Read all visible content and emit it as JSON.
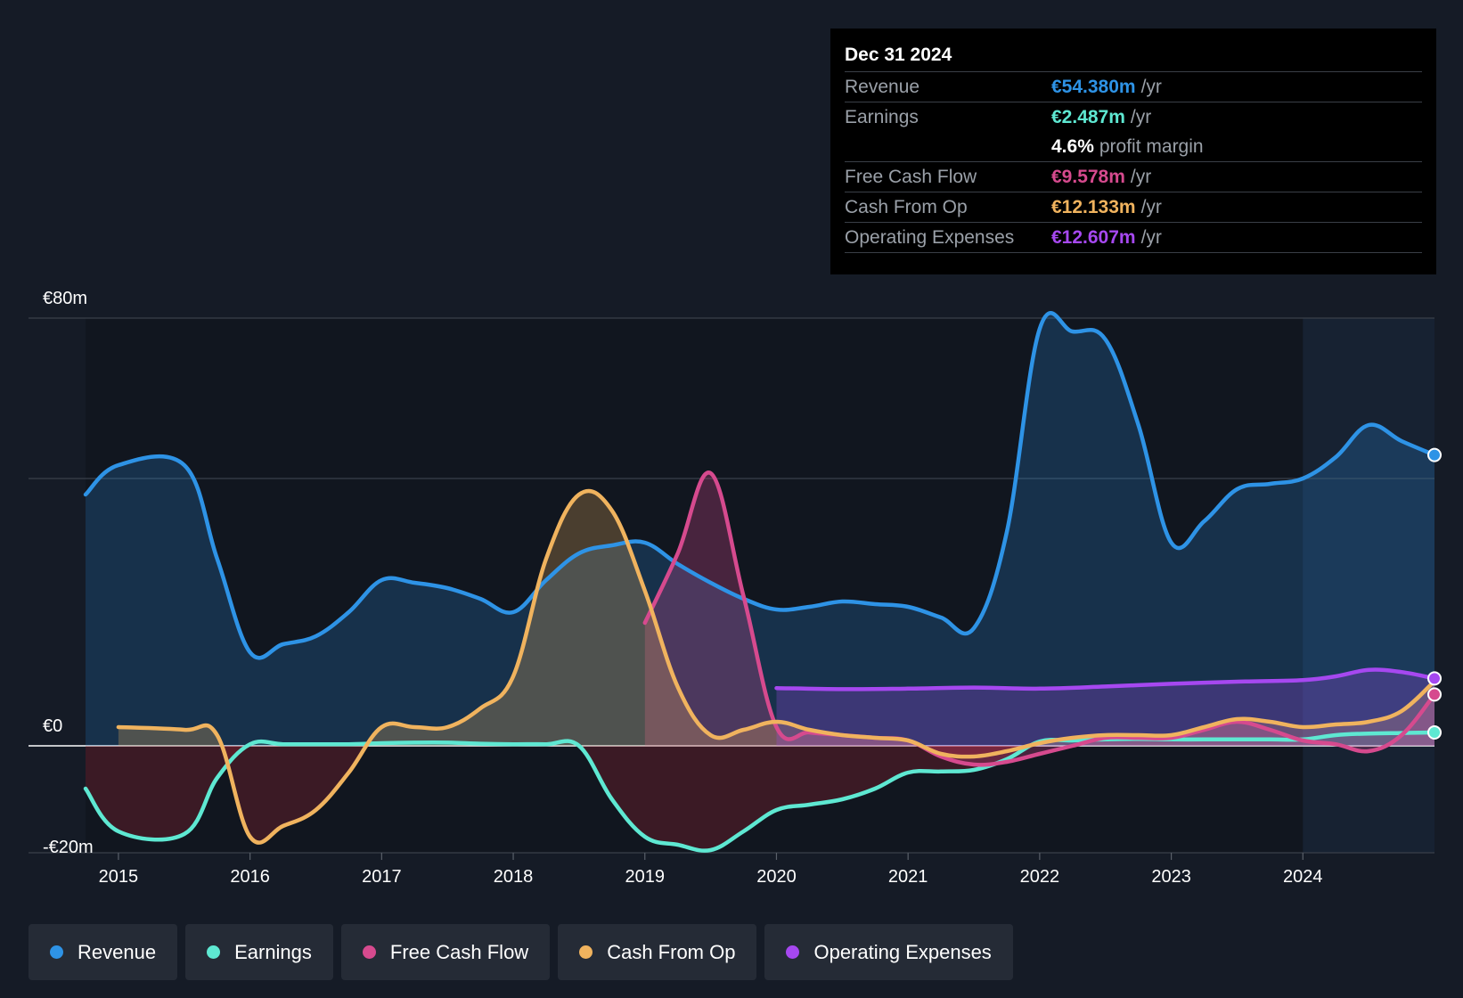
{
  "tooltip": {
    "date": "Dec 31 2024",
    "rows": [
      {
        "label": "Revenue",
        "value": "€54.380m",
        "unit": "/yr",
        "color": "#2e93e6"
      },
      {
        "label": "Earnings",
        "value": "€2.487m",
        "unit": "/yr",
        "color": "#5ee8d2"
      },
      {
        "label": "",
        "value": "4.6%",
        "unit": "profit margin",
        "color": "#ffffff"
      },
      {
        "label": "Free Cash Flow",
        "value": "€9.578m",
        "unit": "/yr",
        "color": "#d64a8e"
      },
      {
        "label": "Cash From Op",
        "value": "€12.133m",
        "unit": "/yr",
        "color": "#f0b35e"
      },
      {
        "label": "Operating Expenses",
        "value": "€12.607m",
        "unit": "/yr",
        "color": "#a648f0"
      }
    ]
  },
  "legend": [
    {
      "label": "Revenue",
      "color": "#2e93e6"
    },
    {
      "label": "Earnings",
      "color": "#5ee8d2"
    },
    {
      "label": "Free Cash Flow",
      "color": "#d64a8e"
    },
    {
      "label": "Cash From Op",
      "color": "#f0b35e"
    },
    {
      "label": "Operating Expenses",
      "color": "#a648f0"
    }
  ],
  "chart_data": {
    "type": "line",
    "title": "",
    "xlabel": "",
    "ylabel": "",
    "ylim": [
      -20,
      80
    ],
    "xlim": [
      2014.75,
      2025.0
    ],
    "y_tick_labels": [
      "€80m",
      "€0",
      "-€20m"
    ],
    "y_ticks": [
      80,
      0,
      -20
    ],
    "x_ticks": [
      2015,
      2016,
      2017,
      2018,
      2019,
      2020,
      2021,
      2022,
      2023,
      2024
    ],
    "x_tick_labels": [
      "2015",
      "2016",
      "2017",
      "2018",
      "2019",
      "2020",
      "2021",
      "2022",
      "2023",
      "2024"
    ],
    "gridlines": [
      80,
      50,
      0,
      -20
    ],
    "highlight_start": 2024.0,
    "series": [
      {
        "name": "Revenue",
        "color": "#2e93e6",
        "x": [
          2014.75,
          2015.0,
          2015.5,
          2015.75,
          2016.0,
          2016.25,
          2016.5,
          2016.75,
          2017.0,
          2017.25,
          2017.5,
          2017.75,
          2018.0,
          2018.25,
          2018.5,
          2018.75,
          2019.0,
          2019.25,
          2019.5,
          2019.75,
          2020.0,
          2020.25,
          2020.5,
          2020.75,
          2021.0,
          2021.25,
          2021.5,
          2021.75,
          2022.0,
          2022.25,
          2022.5,
          2022.75,
          2023.0,
          2023.25,
          2023.5,
          2023.75,
          2024.0,
          2024.25,
          2024.5,
          2024.75,
          2025.0
        ],
        "y": [
          47,
          52.5,
          52.5,
          35,
          17.5,
          19,
          20.5,
          25,
          31,
          30.5,
          29.5,
          27.5,
          25,
          31,
          36,
          37.5,
          38,
          34,
          30.5,
          27.5,
          25.5,
          26,
          27,
          26.5,
          26,
          24,
          22,
          40,
          78,
          77.5,
          76,
          60,
          38,
          42,
          48,
          49,
          50,
          54,
          60,
          57,
          54.4
        ]
      },
      {
        "name": "Earnings",
        "color": "#5ee8d2",
        "x": [
          2014.75,
          2015.0,
          2015.5,
          2015.75,
          2016.0,
          2016.25,
          2016.5,
          2016.75,
          2017.0,
          2017.25,
          2017.5,
          2017.75,
          2018.0,
          2018.25,
          2018.5,
          2018.75,
          2019.0,
          2019.25,
          2019.5,
          2019.75,
          2020.0,
          2020.25,
          2020.5,
          2020.75,
          2021.0,
          2021.25,
          2021.5,
          2021.75,
          2022.0,
          2022.25,
          2022.5,
          2022.75,
          2023.0,
          2023.25,
          2023.5,
          2023.75,
          2024.0,
          2024.25,
          2024.5,
          2024.75,
          2025.0
        ],
        "y": [
          -8,
          -16,
          -16.5,
          -6,
          0.3,
          0.3,
          0.3,
          0.3,
          0.5,
          0.6,
          0.6,
          0.4,
          0.3,
          0.3,
          0,
          -10,
          -17,
          -18.5,
          -19.5,
          -16,
          -12,
          -11,
          -10,
          -8,
          -5,
          -4.8,
          -4.5,
          -2.5,
          0.8,
          1,
          1.2,
          1.3,
          1.2,
          1.2,
          1.2,
          1.2,
          1.2,
          2,
          2.3,
          2.4,
          2.5
        ]
      },
      {
        "name": "Free Cash Flow",
        "color": "#d64a8e",
        "x": [
          2019.0,
          2019.25,
          2019.5,
          2019.75,
          2020.0,
          2020.25,
          2020.5,
          2020.75,
          2021.0,
          2021.25,
          2021.5,
          2021.75,
          2022.0,
          2022.25,
          2022.5,
          2022.75,
          2023.0,
          2023.25,
          2023.5,
          2023.75,
          2024.0,
          2024.25,
          2024.5,
          2024.75,
          2025.0
        ],
        "y": [
          23,
          36,
          51,
          28,
          3.5,
          2.5,
          2,
          1.5,
          1,
          -2,
          -3.5,
          -3,
          -1.5,
          0,
          1.5,
          1.5,
          1.5,
          3,
          4.5,
          3,
          1,
          0.3,
          -1,
          2,
          9.6
        ]
      },
      {
        "name": "Cash From Op",
        "color": "#f0b35e",
        "x": [
          2015.0,
          2015.5,
          2015.75,
          2016.0,
          2016.25,
          2016.5,
          2016.75,
          2017.0,
          2017.25,
          2017.5,
          2017.75,
          2018.0,
          2018.25,
          2018.5,
          2018.75,
          2019.0,
          2019.25,
          2019.5,
          2019.75,
          2020.0,
          2020.25,
          2020.5,
          2020.75,
          2021.0,
          2021.25,
          2021.5,
          2021.75,
          2022.0,
          2022.25,
          2022.5,
          2022.75,
          2023.0,
          2023.25,
          2023.5,
          2023.75,
          2024.0,
          2024.25,
          2024.5,
          2024.75,
          2025.0
        ],
        "y": [
          3.5,
          3,
          2,
          -17,
          -15,
          -12,
          -5,
          3.5,
          3.5,
          3.5,
          7,
          13,
          35,
          47,
          44,
          29,
          11,
          2,
          3,
          4.5,
          3,
          2,
          1.5,
          1,
          -1.5,
          -2,
          -1,
          0.5,
          1.5,
          2,
          2,
          2,
          3.5,
          5,
          4.5,
          3.5,
          4,
          4.5,
          6.5,
          12.1
        ]
      },
      {
        "name": "Operating Expenses",
        "color": "#a648f0",
        "x": [
          2020.0,
          2020.5,
          2021.0,
          2021.5,
          2022.0,
          2022.5,
          2023.0,
          2023.5,
          2024.0,
          2024.25,
          2024.5,
          2024.75,
          2025.0
        ],
        "y": [
          10.8,
          10.6,
          10.7,
          10.9,
          10.7,
          11.1,
          11.6,
          12.0,
          12.3,
          13,
          14.2,
          13.8,
          12.6
        ]
      }
    ]
  }
}
